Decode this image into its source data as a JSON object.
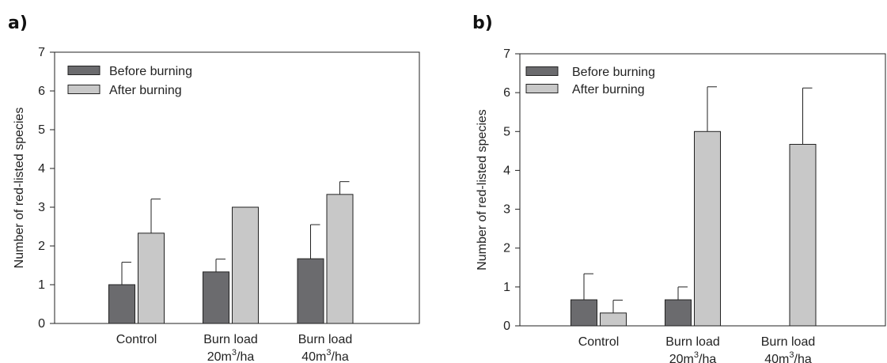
{
  "chart_data": [
    {
      "panel_label": "a)",
      "type": "bar",
      "ylabel": "Number of red-listed species",
      "ylim": [
        0,
        7
      ],
      "yticks": [
        "0",
        "1",
        "2",
        "3",
        "4",
        "5",
        "6",
        "7"
      ],
      "categories": [
        {
          "line1": "Control",
          "line2": "",
          "line2_sup": "",
          "line2_rest": ""
        },
        {
          "line1": "Burn load",
          "line2": "20m",
          "line2_sup": "3",
          "line2_rest": "/ha"
        },
        {
          "line1": "Burn load",
          "line2": "40m",
          "line2_sup": "3",
          "line2_rest": "/ha"
        }
      ],
      "series": [
        {
          "name": "Before burning",
          "color": "#6b6b6e",
          "values": [
            1.0,
            1.33,
            1.67
          ],
          "errors": [
            0.58,
            0.33,
            0.88
          ]
        },
        {
          "name": "After burning",
          "color": "#c8c8c8",
          "values": [
            2.33,
            3.0,
            3.33
          ],
          "errors": [
            0.88,
            0,
            0.33
          ]
        }
      ],
      "legend": "top-left",
      "grid": false
    },
    {
      "panel_label": "b)",
      "type": "bar",
      "ylabel": "Number of red-listed species",
      "ylim": [
        0,
        7
      ],
      "yticks": [
        "0",
        "1",
        "2",
        "3",
        "4",
        "5",
        "6",
        "7"
      ],
      "categories": [
        {
          "line1": "Control",
          "line2": "",
          "line2_sup": "",
          "line2_rest": ""
        },
        {
          "line1": "Burn load",
          "line2": "20m",
          "line2_sup": "3",
          "line2_rest": "/ha"
        },
        {
          "line1": "Burn load",
          "line2": "40m",
          "line2_sup": "3",
          "line2_rest": "/ha"
        }
      ],
      "series": [
        {
          "name": "Before burning",
          "color": "#6b6b6e",
          "values": [
            0.67,
            0.67,
            0
          ],
          "errors": [
            0.67,
            0.33,
            0
          ]
        },
        {
          "name": "After burning",
          "color": "#c8c8c8",
          "values": [
            0.33,
            5.0,
            4.67
          ],
          "errors": [
            0.33,
            1.15,
            1.45
          ]
        }
      ],
      "legend": "top-left",
      "grid": false
    }
  ]
}
